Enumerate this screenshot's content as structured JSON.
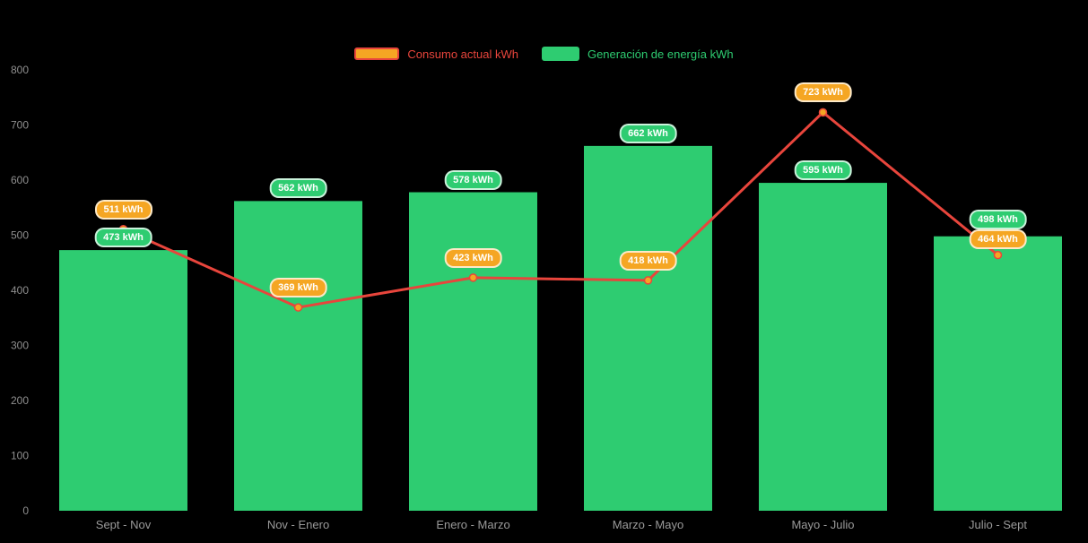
{
  "legend": {
    "items": [
      {
        "label": "Consumo actual kWh",
        "series": "line"
      },
      {
        "label": "Generación de energía kWh",
        "series": "bar"
      }
    ]
  },
  "colors": {
    "background": "#000000",
    "bar": "#2ecc71",
    "line": "#e8453c",
    "point_fill": "#f5a623",
    "point_stroke": "#e8453c",
    "badge_bar_bg": "#2ecc71",
    "badge_line_bg": "#f5a623",
    "axis_text": "#8f8f8f",
    "x_label_text": "#9a9a9a"
  },
  "chart_data": {
    "type": "bar",
    "subtype": "bar-with-line-overlay",
    "categories": [
      "Sept - Nov",
      "Nov - Enero",
      "Enero - Marzo",
      "Marzo - Mayo",
      "Mayo - Julio",
      "Julio - Sept"
    ],
    "series": [
      {
        "name": "Generación de energía kWh",
        "type": "bar",
        "color": "#2ecc71",
        "values": [
          473,
          562,
          578,
          662,
          595,
          498
        ],
        "labels": [
          "473 kWh",
          "562 kWh",
          "578 kWh",
          "662 kWh",
          "595 kWh",
          "498 kWh"
        ]
      },
      {
        "name": "Consumo actual kWh",
        "type": "line",
        "color": "#e8453c",
        "values": [
          511,
          369,
          423,
          418,
          723,
          464
        ],
        "labels": [
          "511 kWh",
          "369 kWh",
          "423 kWh",
          "418 kWh",
          "723 kWh",
          "464 kWh"
        ]
      }
    ],
    "unit": "kWh",
    "xlabel": "",
    "ylabel": "",
    "title": "",
    "ylim": [
      0,
      800
    ],
    "yticks": [
      0,
      100,
      200,
      300,
      400,
      500,
      600,
      700,
      800
    ],
    "grid": false,
    "legend_position": "top-center"
  }
}
